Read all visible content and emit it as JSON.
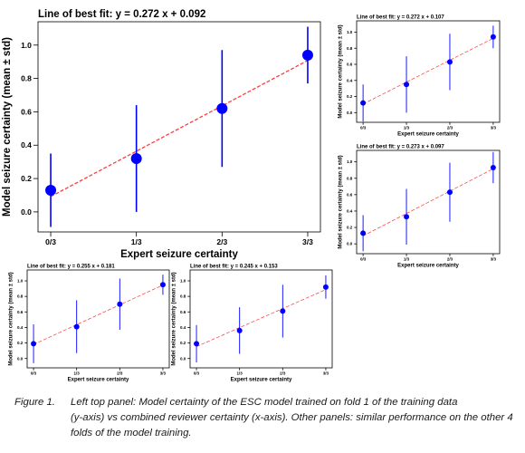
{
  "chart_data": [
    {
      "type": "scatter",
      "title": "Line of best fit: y = 0.272 x + 0.092",
      "xlabel": "Expert seizure certainty",
      "ylabel": "Model seizure certainty (mean ± std)",
      "categories": [
        "0/3",
        "1/3",
        "2/3",
        "3/3"
      ],
      "x": [
        0,
        0.3333,
        0.6667,
        1.0
      ],
      "y": [
        0.13,
        0.32,
        0.62,
        0.94
      ],
      "std": [
        0.22,
        0.32,
        0.35,
        0.17
      ],
      "fit": {
        "slope": 0.272,
        "intercept": 0.092
      },
      "yticks": [
        "0.0",
        "0.2",
        "0.4",
        "0.6",
        "0.8",
        "1.0"
      ],
      "ylim": [
        -0.12,
        1.14
      ],
      "grid": false
    },
    {
      "type": "scatter",
      "title": "Line of best fit: y = 0.272 x + 0.107",
      "xlabel": "Expert seizure certainty",
      "ylabel": "Model seizure certainty (mean ± std)",
      "categories": [
        "0/3",
        "1/3",
        "2/3",
        "3/3"
      ],
      "x": [
        0,
        0.3333,
        0.6667,
        1.0
      ],
      "y": [
        0.12,
        0.35,
        0.63,
        0.94
      ],
      "std": [
        0.23,
        0.35,
        0.35,
        0.14
      ],
      "fit": {
        "slope": 0.272,
        "intercept": 0.107
      },
      "yticks": [
        "0.0",
        "0.2",
        "0.4",
        "0.6",
        "0.8",
        "1.0"
      ],
      "ylim": [
        -0.12,
        1.14
      ],
      "grid": false
    },
    {
      "type": "scatter",
      "title": "Line of best fit: y = 0.273 x + 0.097",
      "xlabel": "Expert seizure certainty",
      "ylabel": "Model seizure certainty (mean ± std)",
      "categories": [
        "0/3",
        "1/3",
        "2/3",
        "3/3"
      ],
      "x": [
        0,
        0.3333,
        0.6667,
        1.0
      ],
      "y": [
        0.13,
        0.33,
        0.63,
        0.93
      ],
      "std": [
        0.22,
        0.34,
        0.36,
        0.19
      ],
      "fit": {
        "slope": 0.273,
        "intercept": 0.097
      },
      "yticks": [
        "0.0",
        "0.2",
        "0.4",
        "0.6",
        "0.8",
        "1.0"
      ],
      "ylim": [
        -0.12,
        1.14
      ],
      "grid": false
    },
    {
      "type": "scatter",
      "title": "Line of best fit: y = 0.255 x + 0.181",
      "xlabel": "Expert seizure certainty",
      "ylabel": "Model seizure certainty (mean ± std)",
      "categories": [
        "0/3",
        "1/3",
        "2/3",
        "3/3"
      ],
      "x": [
        0,
        0.3333,
        0.6667,
        1.0
      ],
      "y": [
        0.19,
        0.41,
        0.7,
        0.95
      ],
      "std": [
        0.25,
        0.34,
        0.33,
        0.13
      ],
      "fit": {
        "slope": 0.255,
        "intercept": 0.181
      },
      "yticks": [
        "0.0",
        "0.2",
        "0.4",
        "0.6",
        "0.8",
        "1.0"
      ],
      "ylim": [
        -0.12,
        1.14
      ],
      "grid": false
    },
    {
      "type": "scatter",
      "title": "Line of best fit: y = 0.245 x + 0.153",
      "xlabel": "Expert seizure certainty",
      "ylabel": "Model seizure certainty (mean ± std)",
      "categories": [
        "0/3",
        "1/3",
        "2/3",
        "3/3"
      ],
      "x": [
        0,
        0.3333,
        0.6667,
        1.0
      ],
      "y": [
        0.19,
        0.36,
        0.61,
        0.92
      ],
      "std": [
        0.24,
        0.3,
        0.34,
        0.15
      ],
      "fit": {
        "slope": 0.245,
        "intercept": 0.153
      },
      "yticks": [
        "0.0",
        "0.2",
        "0.4",
        "0.6",
        "0.8",
        "1.0"
      ],
      "ylim": [
        -0.12,
        1.14
      ],
      "grid": false
    }
  ],
  "colors": {
    "points": "#0000ff",
    "fit_line": "#ff3b3b",
    "axes": "#000000"
  },
  "caption": {
    "label": "Figure 1.",
    "text_line1": "Left top panel: Model certainty of the ESC model trained on fold 1 of the training data",
    "text_rest": "(y-axis) vs combined reviewer certainty (x-axis). Other panels: similar performance on the other 4 folds of the model training."
  }
}
